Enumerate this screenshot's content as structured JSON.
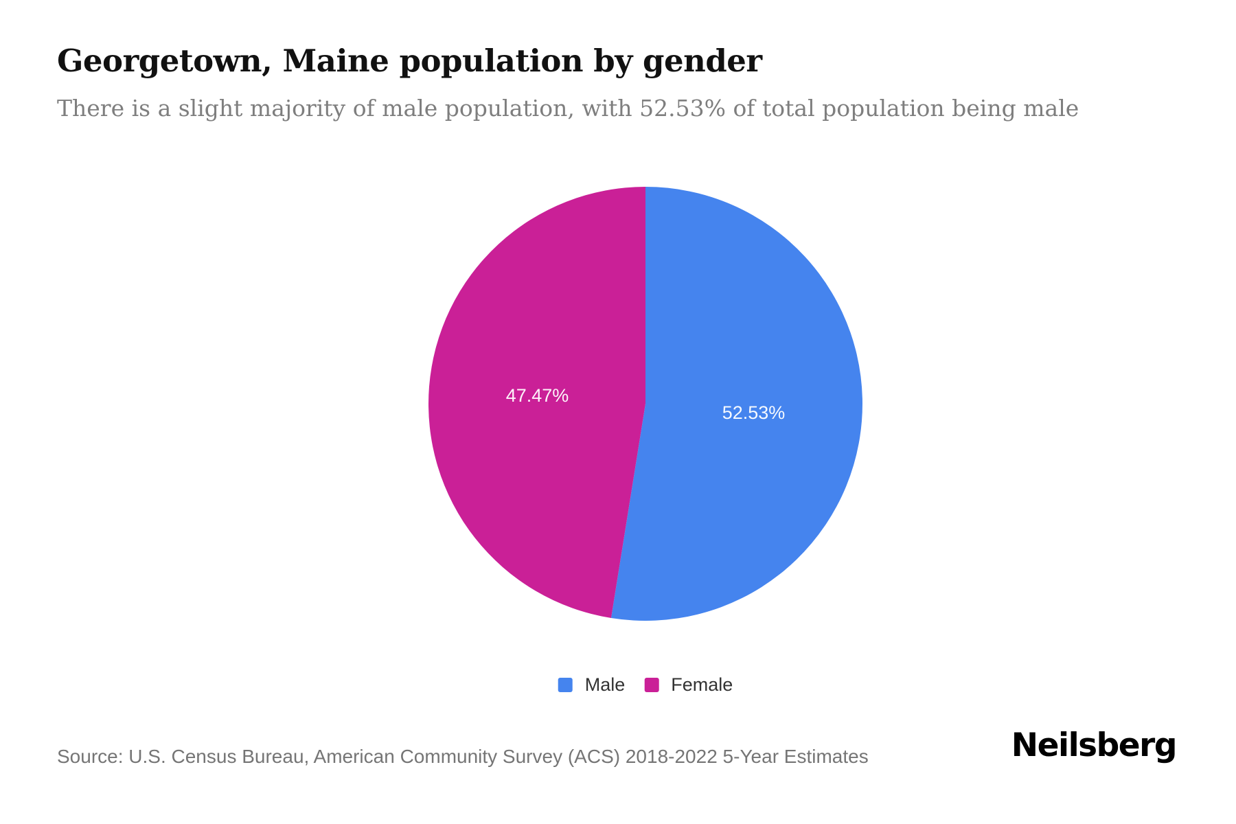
{
  "page": {
    "title": "Georgetown, Maine population by gender",
    "subtitle": "There is a slight majority of male population, with 52.53% of total population being male",
    "source": "Source: U.S. Census Bureau, American Community Survey (ACS) 2018-2022 5-Year Estimates",
    "brand": "Neilsberg"
  },
  "chart_data": {
    "type": "pie",
    "title": "Georgetown, Maine population by gender",
    "categories": [
      "Male",
      "Female"
    ],
    "values": [
      52.53,
      47.47
    ],
    "labels": [
      "52.53%",
      "47.47%"
    ],
    "colors": [
      "#4584EE",
      "#CA2097"
    ],
    "unit": "percent of total population",
    "start_angle_deg": 0,
    "direction": "clockwise",
    "slice_label_color": "#ffffff",
    "legend_position": "bottom",
    "background_color": "#ffffff"
  },
  "legend": {
    "items": [
      {
        "label": "Male"
      },
      {
        "label": "Female"
      }
    ]
  }
}
